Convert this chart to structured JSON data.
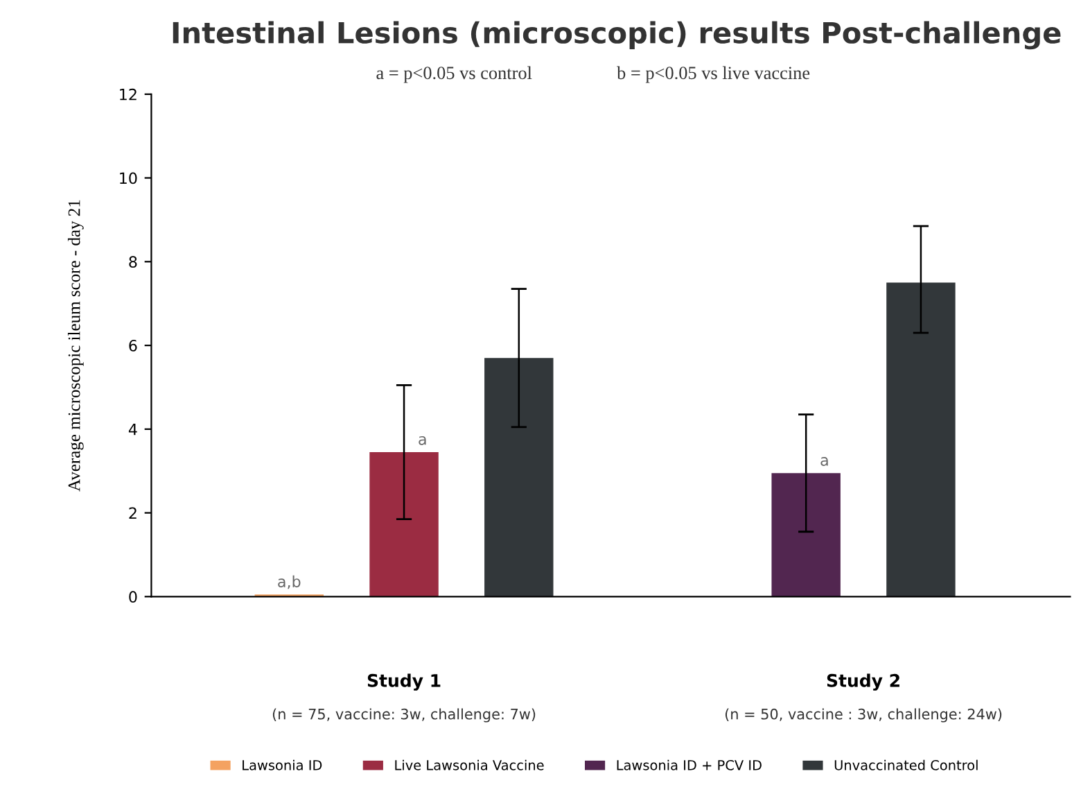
{
  "chart_data": {
    "type": "bar",
    "title": "Intestinal Lesions (microscopic) results Post-challenge",
    "annotations": [
      "a = p<0.05 vs control",
      "b = p<0.05 vs live vaccine"
    ],
    "ylabel": "Average microscopic ileum score - day 21",
    "categories": [
      "Study 1\n(n = 75, vaccine: 3w, challenge: 7w)",
      "Study 2\n(n = 50, vaccine : 3w, challenge: 24w)"
    ],
    "series": [
      {
        "name": "Lawsonia ID",
        "color": "#f4a261",
        "values": [
          0.05,
          null
        ],
        "value_labels": [
          "a,b",
          null
        ]
      },
      {
        "name": "Live Lawsonia Vaccine",
        "color": "#9b2c42",
        "values": [
          3.45,
          null
        ],
        "errors": [
          [
            1.85,
            5.05
          ],
          null
        ],
        "value_labels": [
          "a",
          null
        ]
      },
      {
        "name": "Lawsonia ID + PCV ID",
        "color": "#522650",
        "values": [
          null,
          2.95
        ],
        "errors": [
          null,
          [
            1.55,
            4.35
          ]
        ],
        "value_labels": [
          null,
          "a"
        ]
      },
      {
        "name": "Unvaccinated Control",
        "color": "#32373a",
        "values": [
          5.7,
          7.5
        ],
        "errors": [
          [
            4.05,
            7.35
          ],
          [
            6.3,
            8.85
          ]
        ]
      }
    ],
    "ylim": [
      0,
      12
    ],
    "yticks": [
      0,
      2,
      4,
      6,
      8,
      10,
      12
    ],
    "grid": false,
    "legend": "bottom"
  }
}
